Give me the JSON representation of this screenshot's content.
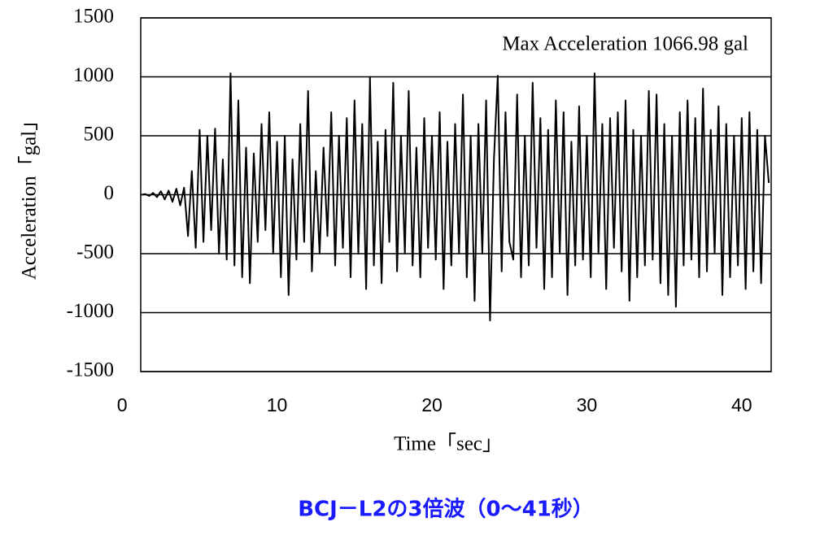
{
  "chart_data": {
    "type": "line",
    "annotation": "Max Acceleration  1066.98 gal",
    "xlabel": "Time「sec」",
    "ylabel": "Acceleration「gal」",
    "caption": "BCJ－L2の3倍波（0～41秒）",
    "x": [
      1.25,
      1.5,
      1.75,
      2,
      2.25,
      2.5,
      2.75,
      3,
      3.25,
      3.5,
      3.75,
      4,
      4.25,
      4.5,
      4.75,
      5,
      5.25,
      5.5,
      5.75,
      6,
      6.25,
      6.5,
      6.75,
      7,
      7.25,
      7.5,
      7.75,
      8,
      8.25,
      8.5,
      8.75,
      9,
      9.25,
      9.5,
      9.75,
      10,
      10.25,
      10.5,
      10.75,
      11,
      11.25,
      11.5,
      11.75,
      12,
      12.25,
      12.5,
      12.75,
      13,
      13.25,
      13.5,
      13.75,
      14,
      14.25,
      14.5,
      14.75,
      15,
      15.25,
      15.5,
      15.75,
      16,
      16.25,
      16.5,
      16.75,
      17,
      17.25,
      17.5,
      17.75,
      18,
      18.25,
      18.5,
      18.75,
      19,
      19.25,
      19.5,
      19.75,
      20,
      20.25,
      20.5,
      20.75,
      21,
      21.25,
      21.5,
      21.75,
      22,
      22.25,
      22.5,
      22.75,
      23,
      23.25,
      23.5,
      23.75,
      24,
      24.25,
      24.5,
      24.75,
      25,
      25.25,
      25.5,
      25.75,
      26,
      26.25,
      26.5,
      26.75,
      27,
      27.25,
      27.5,
      27.75,
      28,
      28.25,
      28.5,
      28.75,
      29,
      29.25,
      29.5,
      29.75,
      30,
      30.25,
      30.5,
      30.75,
      31,
      31.25,
      31.5,
      31.75,
      32,
      32.25,
      32.5,
      32.75,
      33,
      33.25,
      33.5,
      33.75,
      34,
      34.25,
      34.5,
      34.75,
      35,
      35.25,
      35.5,
      35.75,
      36,
      36.25,
      36.5,
      36.75,
      37,
      37.25,
      37.5,
      37.75,
      38,
      38.25,
      38.5,
      38.75,
      39,
      39.25,
      39.5,
      39.75,
      40,
      40.25,
      40.5,
      40.75,
      41,
      41.25,
      41.5,
      41.75
    ],
    "series": [
      {
        "name": "Acceleration",
        "color": "#000000",
        "values": [
          0,
          5,
          -10,
          15,
          -20,
          30,
          -40,
          35,
          -60,
          50,
          -90,
          60,
          -350,
          200,
          -450,
          550,
          -400,
          500,
          -300,
          560,
          -500,
          300,
          -550,
          1030,
          -600,
          800,
          -700,
          400,
          -750,
          350,
          -400,
          600,
          -300,
          700,
          -500,
          450,
          -700,
          500,
          -850,
          300,
          -550,
          600,
          -400,
          880,
          -650,
          200,
          -500,
          400,
          -350,
          700,
          -600,
          500,
          -450,
          650,
          -700,
          800,
          -500,
          600,
          -800,
          1000,
          -600,
          450,
          -750,
          550,
          -400,
          950,
          -650,
          500,
          -500,
          880,
          -600,
          400,
          -700,
          650,
          -450,
          500,
          -550,
          700,
          -800,
          450,
          -600,
          600,
          -500,
          850,
          -700,
          500,
          -900,
          600,
          -500,
          800,
          -1066.98,
          300,
          1010,
          -650,
          700,
          -400,
          -550,
          850,
          -700,
          500,
          -600,
          950,
          -450,
          650,
          -800,
          550,
          -700,
          800,
          -500,
          700,
          -850,
          450,
          -600,
          750,
          -550,
          500,
          -700,
          1030,
          -500,
          600,
          -800,
          650,
          -450,
          700,
          -650,
          800,
          -900,
          550,
          -700,
          500,
          -600,
          880,
          -550,
          850,
          -750,
          600,
          -850,
          500,
          -950,
          700,
          -600,
          800,
          -550,
          650,
          -700,
          900,
          -650,
          550,
          -500,
          750,
          -850,
          600,
          -700,
          500,
          -600,
          650,
          -800,
          700,
          -650,
          550,
          -750,
          500,
          100
        ]
      }
    ],
    "xlim": [
      1.2,
      41.9
    ],
    "xticks": [
      0,
      10,
      20,
      30,
      40
    ],
    "ylim": [
      -1500,
      1500
    ],
    "yticks": [
      -1500,
      -1000,
      -500,
      0,
      500,
      1000,
      1500
    ],
    "grid": true
  }
}
